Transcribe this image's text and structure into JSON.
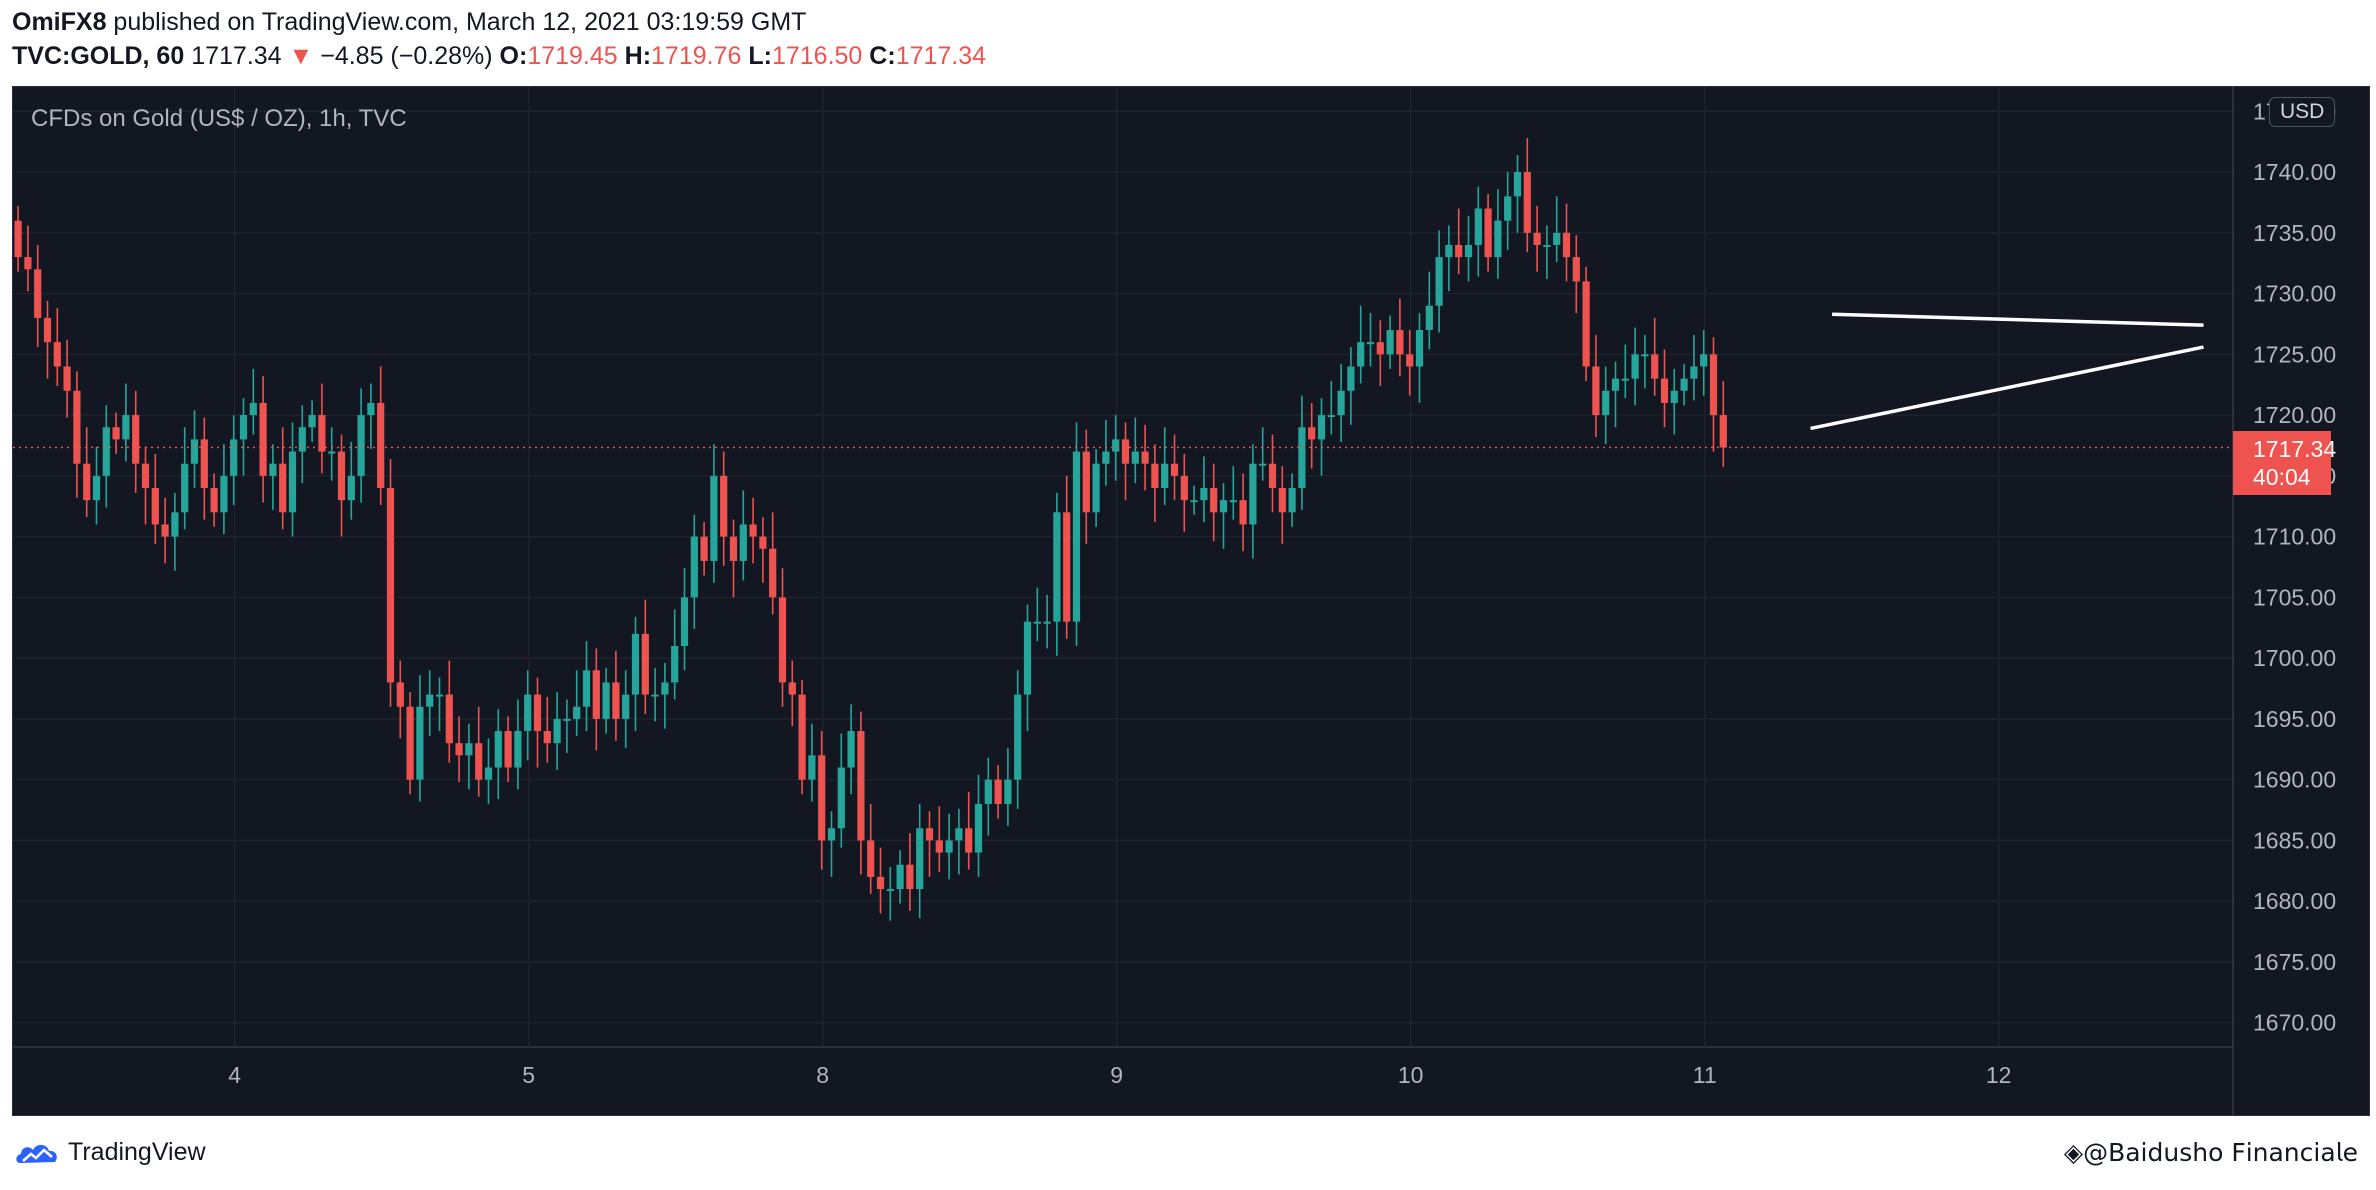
{
  "header": {
    "author": "OmiFX8",
    "published": " published on TradingView.com, March 12, 2021 03:19:59 GMT",
    "symbol": "TVC:GOLD, 60",
    "last": "1717.34",
    "change": "−4.85 (−0.28%)",
    "o_label": "O:",
    "o_value": "1719.45",
    "h_label": "H:",
    "h_value": "1719.76",
    "l_label": "L:",
    "l_value": "1716.50",
    "c_label": "C:",
    "c_value": "1717.34"
  },
  "footer": {
    "brand": "TradingView",
    "watermark": "@𝖡𝖺𝗂𝖽𝗎𝗌𝗁𝗈 𝖥𝗂𝗇𝖺𝗇𝖼𝗂𝖺𝗅𝖾"
  },
  "colors": {
    "up": "#26a69a",
    "down": "#ef5350",
    "background": "#131722",
    "grid": "#1e222d",
    "text": "#b2b5be"
  },
  "chart_data": {
    "type": "candlestick",
    "title": "CFDs on Gold (US$ / OZ), 1h, TVC",
    "currency": "USD",
    "ylim": [
      1668,
      1747
    ],
    "y_ticks": [
      "1745.00",
      "1740.00",
      "1735.00",
      "1730.00",
      "1725.00",
      "1720.00",
      "1715.00",
      "1710.00",
      "1705.00",
      "1700.00",
      "1695.00",
      "1690.00",
      "1685.00",
      "1680.00",
      "1675.00",
      "1670.00"
    ],
    "x_ticks": [
      {
        "label": "4",
        "index": 22.1
      },
      {
        "label": "5",
        "index": 52.1
      },
      {
        "label": "8",
        "index": 82.1
      },
      {
        "label": "9",
        "index": 112.1
      },
      {
        "label": "10",
        "index": 142.1
      },
      {
        "label": "11",
        "index": 172.1
      },
      {
        "label": "12",
        "index": 202.1
      }
    ],
    "last_price": "1717.34",
    "countdown": "40:04",
    "closes": [
      1733,
      1732,
      1728,
      1726,
      1724,
      1722,
      1716,
      1713,
      1715,
      1719,
      1718,
      1720,
      1716,
      1714,
      1711,
      1710,
      1712,
      1716,
      1718,
      1714,
      1712,
      1715,
      1718,
      1720,
      1721,
      1715,
      1716,
      1712,
      1717,
      1719,
      1720,
      1717,
      1717,
      1713,
      1715,
      1720,
      1721,
      1714,
      1698,
      1696,
      1690,
      1696,
      1697,
      1697,
      1693,
      1692,
      1693,
      1690,
      1691,
      1694,
      1691,
      1694,
      1697,
      1694,
      1693,
      1695,
      1695,
      1696,
      1699,
      1695,
      1698,
      1695,
      1697,
      1702,
      1697,
      1697,
      1698,
      1701,
      1705,
      1710,
      1708,
      1715,
      1710,
      1708,
      1711,
      1710,
      1709,
      1705,
      1698,
      1697,
      1690,
      1692,
      1685,
      1686,
      1691,
      1694,
      1685,
      1682,
      1681,
      1681,
      1683,
      1681,
      1686,
      1685,
      1684,
      1685,
      1686,
      1684,
      1688,
      1690,
      1688,
      1690,
      1697,
      1703,
      1703,
      1703,
      1712,
      1703,
      1717,
      1712,
      1716,
      1717,
      1718,
      1716,
      1717,
      1716,
      1714,
      1716,
      1715,
      1713,
      1713,
      1714,
      1712,
      1713,
      1713,
      1711,
      1716,
      1716,
      1714,
      1712,
      1714,
      1719,
      1718,
      1720,
      1720,
      1722,
      1724,
      1726,
      1726,
      1725,
      1727,
      1725,
      1724,
      1727,
      1729,
      1733,
      1734,
      1733,
      1734,
      1737,
      1733,
      1736,
      1738,
      1740,
      1735,
      1734,
      1734,
      1735,
      1733,
      1731,
      1724,
      1720,
      1722,
      1723,
      1723,
      1725,
      1725,
      1723,
      1721,
      1722,
      1723,
      1724,
      1725,
      1720,
      1717.34
    ],
    "trendlines": [
      {
        "from": {
          "index": 185.1,
          "price": 1728.3
        },
        "to": {
          "index": 223,
          "price": 1727.4
        }
      },
      {
        "from": {
          "index": 182.9,
          "price": 1718.9
        },
        "to": {
          "index": 223,
          "price": 1725.6
        }
      }
    ]
  }
}
